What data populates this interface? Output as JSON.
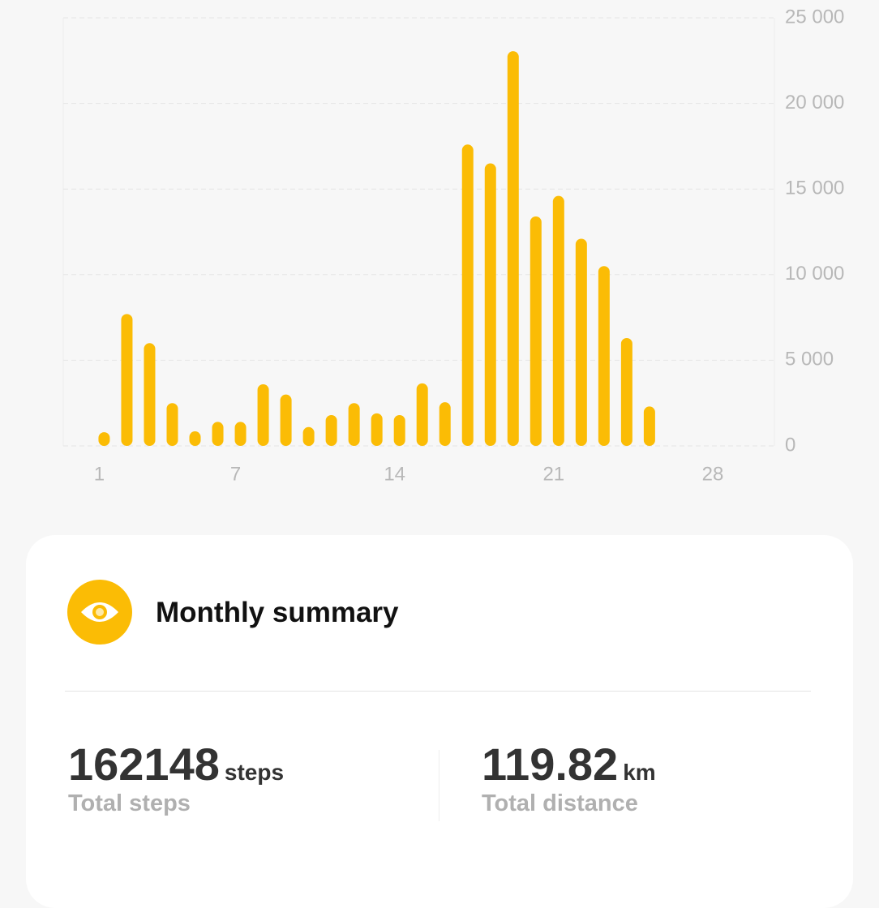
{
  "chart_data": {
    "type": "bar",
    "x": [
      1,
      2,
      3,
      4,
      5,
      6,
      7,
      8,
      9,
      10,
      11,
      12,
      13,
      14,
      15,
      16,
      17,
      18,
      19,
      20,
      21,
      22,
      23,
      24,
      25
    ],
    "values": [
      800,
      7700,
      6000,
      2500,
      850,
      1400,
      1400,
      3600,
      3000,
      1100,
      1800,
      2500,
      1900,
      1800,
      3650,
      2550,
      17600,
      16500,
      23050,
      13400,
      14600,
      12100,
      10500,
      6300,
      2300
    ],
    "color": "#fbbc05",
    "xlim": [
      -0.8,
      30.5
    ],
    "xticks": [
      1,
      7,
      14,
      21,
      28
    ],
    "ylim": [
      0,
      25000
    ],
    "yticks": [
      0,
      {
        "value": 5000,
        "label": "5 000"
      },
      {
        "value": 10000,
        "label": "10 000"
      },
      {
        "value": 15000,
        "label": "15 000"
      },
      {
        "value": 20000,
        "label": "20 000"
      },
      {
        "value": 25000,
        "label": "25 000"
      }
    ],
    "grid": true
  },
  "summary": {
    "title": "Monthly summary",
    "stats": [
      {
        "value": 162148,
        "unit": "steps",
        "label": "Total steps"
      },
      {
        "value": 119.82,
        "unit": "km",
        "label": "Total distance"
      }
    ]
  }
}
